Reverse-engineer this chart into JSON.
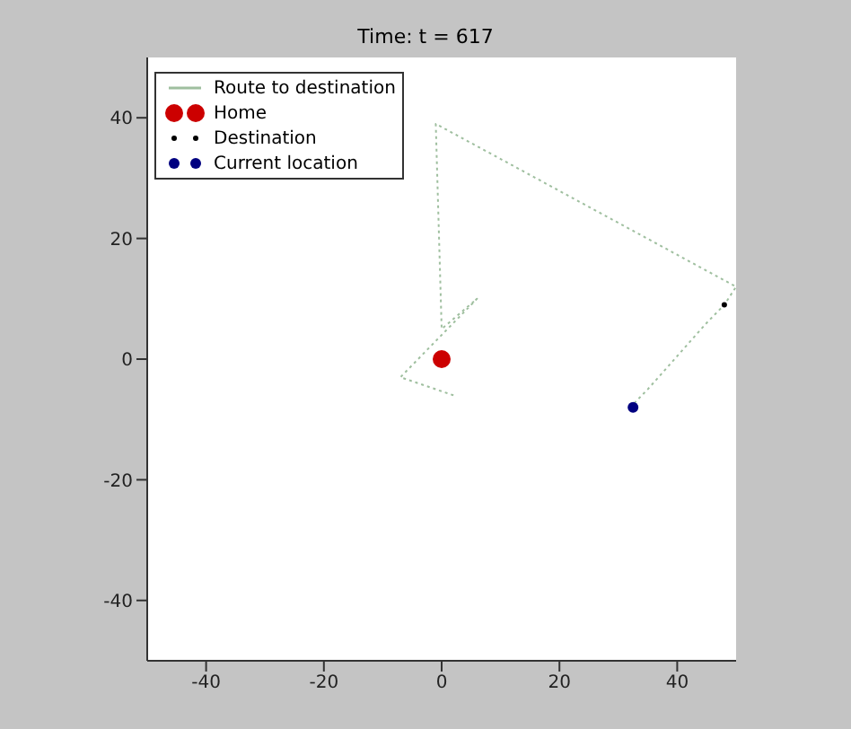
{
  "chart_data": {
    "type": "scatter",
    "title": "Time: t = 617",
    "series": [
      {
        "name": "Route to destination",
        "type": "line",
        "color": "#9fbf9f",
        "line_style": "dotted",
        "marker": "none",
        "x": [
          2,
          -7,
          -4,
          6,
          0,
          -1,
          50,
          48,
          45,
          35,
          32
        ],
        "values": [
          -6,
          -3,
          0,
          10,
          5,
          39,
          12,
          9,
          6,
          -5,
          -8
        ]
      },
      {
        "name": "Home",
        "color": "#cc0000",
        "marker": "circle",
        "x": [
          0
        ],
        "values": [
          0
        ]
      },
      {
        "name": "Destination",
        "color": "#000000",
        "marker": "circle",
        "x": [
          48
        ],
        "values": [
          9
        ]
      },
      {
        "name": "Current location",
        "color": "#000080",
        "marker": "circle",
        "x": [
          32.5
        ],
        "values": [
          -8
        ]
      }
    ],
    "xlim": [
      -50,
      50
    ],
    "xticks": [
      -40,
      -20,
      0,
      20,
      40
    ],
    "ylim": [
      -50,
      50
    ],
    "yticks": [
      -40,
      -20,
      0,
      20,
      40
    ],
    "grid": false,
    "legend": "top left"
  }
}
